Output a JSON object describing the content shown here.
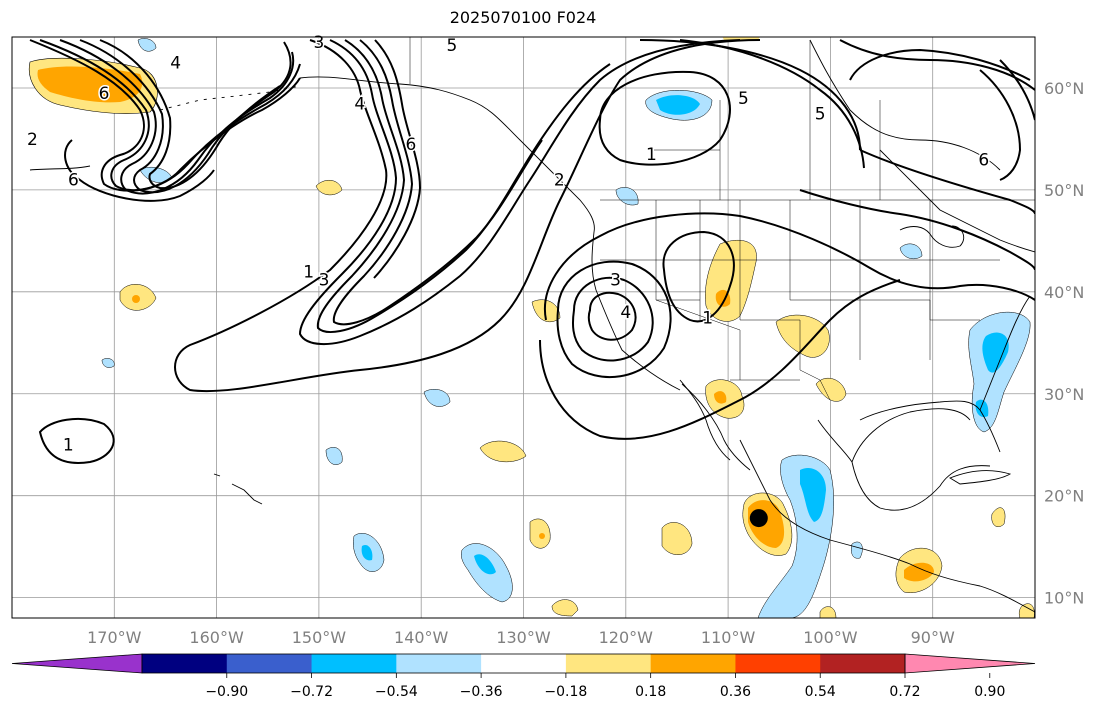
{
  "title": "2025070100 F024",
  "map": {
    "lon_range": [
      -180,
      -80
    ],
    "lat_range": [
      8,
      65
    ],
    "lon_ticks": [
      "170°W",
      "160°W",
      "150°W",
      "140°W",
      "130°W",
      "120°W",
      "110°W",
      "100°W",
      "90°W"
    ],
    "lat_ticks": [
      "10°N",
      "20°N",
      "30°N",
      "40°N",
      "50°N",
      "60°N"
    ],
    "gridlines": true,
    "land_outline_color": "#000000",
    "contour_color": "#000000",
    "contour_labels": [
      {
        "text": "3",
        "lon": -150,
        "lat": 64.5
      },
      {
        "text": "5",
        "lon": -137,
        "lat": 64.2
      },
      {
        "text": "6",
        "lon": -171,
        "lat": 59.5
      },
      {
        "text": "4",
        "lon": -164,
        "lat": 62.5
      },
      {
        "text": "4",
        "lon": -146,
        "lat": 58.5
      },
      {
        "text": "6",
        "lon": -141,
        "lat": 54.5
      },
      {
        "text": "2",
        "lon": -178,
        "lat": 55
      },
      {
        "text": "6",
        "lon": -174,
        "lat": 51
      },
      {
        "text": "1",
        "lon": -151,
        "lat": 42
      },
      {
        "text": "3",
        "lon": -149.5,
        "lat": 41.2
      },
      {
        "text": "2",
        "lon": -126.5,
        "lat": 51
      },
      {
        "text": "1",
        "lon": -117.5,
        "lat": 53.5
      },
      {
        "text": "5",
        "lon": -108.5,
        "lat": 59
      },
      {
        "text": "5",
        "lon": -101,
        "lat": 57.5
      },
      {
        "text": "6",
        "lon": -85,
        "lat": 53
      },
      {
        "text": "3",
        "lon": -121,
        "lat": 41.2
      },
      {
        "text": "4",
        "lon": -120,
        "lat": 38
      },
      {
        "text": "1",
        "lon": -112,
        "lat": 37.5
      },
      {
        "text": "1",
        "lon": -174.5,
        "lat": 25
      }
    ],
    "marker": {
      "lon": -107,
      "lat": 17.8,
      "color": "#000000"
    }
  },
  "colorbar": {
    "colors": [
      "#9932cc",
      "#000080",
      "#3a5fcd",
      "#00bfff",
      "#b0e2ff",
      "#ffffff",
      "#ffe680",
      "#ffa500",
      "#ff4000",
      "#b22222",
      "#ff88b0"
    ],
    "ticks": [
      "−0.90",
      "−0.72",
      "−0.54",
      "−0.36",
      "−0.18",
      "0.18",
      "0.36",
      "0.54",
      "0.72",
      "0.90"
    ]
  }
}
